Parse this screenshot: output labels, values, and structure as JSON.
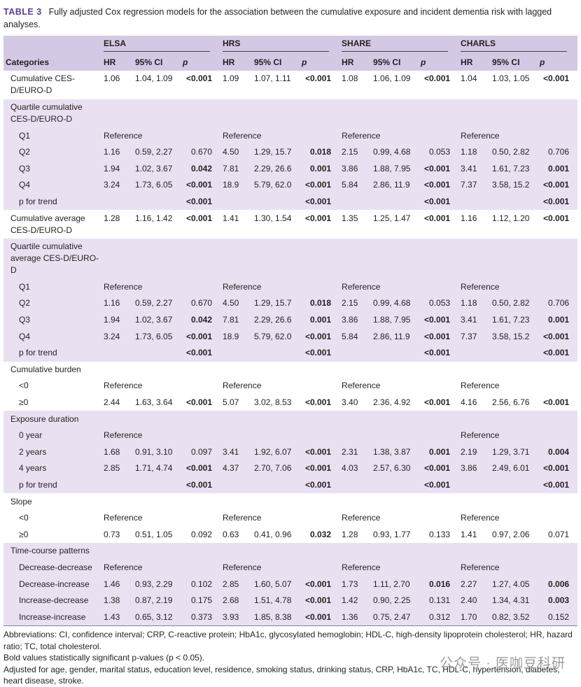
{
  "caption": {
    "label": "TABLE 3",
    "text": "Fully adjusted Cox regression models for the association between the cumulative exposure and incident dementia risk with lagged analyses."
  },
  "table": {
    "header": {
      "first": "Categories",
      "groups": [
        "ELSA",
        "HRS",
        "SHARE",
        "CHARLS"
      ],
      "columns": [
        "HR",
        "95% CI",
        "p",
        "HR",
        "95% CI",
        "p",
        "HR",
        "95% CI",
        "p",
        "HR",
        "95% CI",
        "p"
      ]
    },
    "sections": [
      {
        "label": "Cumulative CES-D/EURO-D",
        "cells": [
          "1.06",
          "1.04, 1.09",
          "<0.001",
          "1.09",
          "1.07, 1.11",
          "<0.001",
          "1.08",
          "1.06, 1.09",
          "<0.001",
          "1.04",
          "1.03, 1.05",
          "<0.001"
        ],
        "bold": [
          2,
          5,
          8,
          11
        ]
      },
      {
        "label": "Quartile cumulative CES-D/EURO-D",
        "rows": [
          {
            "label": "Q1",
            "cells": [
              "Reference",
              null,
              null,
              "Reference",
              null,
              null,
              "Reference",
              null,
              null,
              "Reference",
              null,
              null
            ],
            "bold": []
          },
          {
            "label": "Q2",
            "cells": [
              "1.16",
              "0.59, 2.27",
              "0.670",
              "4.50",
              "1.29, 15.7",
              "0.018",
              "2.15",
              "0.99, 4.68",
              "0.053",
              "1.18",
              "0.50, 2.82",
              "0.706"
            ],
            "bold": [
              5
            ]
          },
          {
            "label": "Q3",
            "cells": [
              "1.94",
              "1.02, 3.67",
              "0.042",
              "7.81",
              "2.29, 26.6",
              "0.001",
              "3.86",
              "1.88, 7.95",
              "<0.001",
              "3.41",
              "1.61, 7.23",
              "0.001"
            ],
            "bold": [
              2,
              5,
              8,
              11
            ]
          },
          {
            "label": "Q4",
            "cells": [
              "3.24",
              "1.73, 6.05",
              "<0.001",
              "18.9",
              "5.79, 62.0",
              "<0.001",
              "5.84",
              "2.86, 11.9",
              "<0.001",
              "7.37",
              "3.58, 15.2",
              "<0.001"
            ],
            "bold": [
              2,
              5,
              8,
              11
            ]
          },
          {
            "label": "p for trend",
            "cells": [
              null,
              null,
              "<0.001",
              null,
              null,
              "<0.001",
              null,
              null,
              "<0.001",
              null,
              null,
              "<0.001"
            ],
            "bold": [
              2,
              5,
              8,
              11
            ]
          }
        ]
      },
      {
        "label": "Cumulative average CES-D/EURO-D",
        "cells": [
          "1.28",
          "1.16, 1.42",
          "<0.001",
          "1.41",
          "1.30, 1.54",
          "<0.001",
          "1.35",
          "1.25, 1.47",
          "<0.001",
          "1.16",
          "1.12, 1.20",
          "<0.001"
        ],
        "bold": [
          2,
          5,
          8,
          11
        ]
      },
      {
        "label": "Quartile cumulative average CES-D/EURO-D",
        "rows": [
          {
            "label": "Q1",
            "cells": [
              "Reference",
              null,
              null,
              "Reference",
              null,
              null,
              "Reference",
              null,
              null,
              "Reference",
              null,
              null
            ],
            "bold": []
          },
          {
            "label": "Q2",
            "cells": [
              "1.16",
              "0.59, 2.27",
              "0.670",
              "4.50",
              "1.29, 15.7",
              "0.018",
              "2.15",
              "0.99, 4.68",
              "0.053",
              "1.18",
              "0.50, 2.82",
              "0.706"
            ],
            "bold": [
              5
            ]
          },
          {
            "label": "Q3",
            "cells": [
              "1.94",
              "1.02, 3.67",
              "0.042",
              "7.81",
              "2.29, 26.6",
              "0.001",
              "3.86",
              "1.88, 7.95",
              "<0.001",
              "3.41",
              "1.61, 7.23",
              "0.001"
            ],
            "bold": [
              2,
              5,
              8,
              11
            ]
          },
          {
            "label": "Q4",
            "cells": [
              "3.24",
              "1.73, 6.05",
              "<0.001",
              "18.9",
              "5.79, 62.0",
              "<0.001",
              "5.84",
              "2.86, 11.9",
              "<0.001",
              "7.37",
              "3.58, 15.2",
              "<0.001"
            ],
            "bold": [
              2,
              5,
              8,
              11
            ]
          },
          {
            "label": "p for trend",
            "cells": [
              null,
              null,
              "<0.001",
              null,
              null,
              "<0.001",
              null,
              null,
              "<0.001",
              null,
              null,
              "<0.001"
            ],
            "bold": [
              2,
              5,
              8,
              11
            ]
          }
        ]
      },
      {
        "label": "Cumulative burden",
        "rows": [
          {
            "label": "<0",
            "cells": [
              "Reference",
              null,
              null,
              "Reference",
              null,
              null,
              "Reference",
              null,
              null,
              "Reference",
              null,
              null
            ],
            "bold": []
          },
          {
            "label": "≥0",
            "cells": [
              "2.44",
              "1.63, 3.64",
              "<0.001",
              "5.07",
              "3.02, 8.53",
              "<0.001",
              "3.40",
              "2.36, 4.92",
              "<0.001",
              "4.16",
              "2.56, 6.76",
              "<0.001"
            ],
            "bold": [
              2,
              5,
              8,
              11
            ]
          }
        ]
      },
      {
        "label": "Exposure duration",
        "rows": [
          {
            "label": "0 year",
            "cells": [
              "Reference",
              null,
              null,
              null,
              null,
              null,
              null,
              null,
              null,
              "Reference",
              null,
              null
            ],
            "bold": []
          },
          {
            "label": "2 years",
            "cells": [
              "1.68",
              "0.91, 3.10",
              "0.097",
              "3.41",
              "1.92, 6.07",
              "<0.001",
              "2.31",
              "1.38, 3.87",
              "0.001",
              "2.19",
              "1.29, 3.71",
              "0.004"
            ],
            "bold": [
              5,
              8,
              11
            ]
          },
          {
            "label": "4 years",
            "cells": [
              "2.85",
              "1.71, 4.74",
              "<0.001",
              "4.37",
              "2.70, 7.06",
              "<0.001",
              "4.03",
              "2.57, 6.30",
              "<0.001",
              "3.86",
              "2.49, 6.01",
              "<0.001"
            ],
            "bold": [
              2,
              5,
              8,
              11
            ]
          },
          {
            "label": "p for trend",
            "cells": [
              null,
              null,
              "<0.001",
              null,
              null,
              "<0.001",
              null,
              null,
              "<0.001",
              null,
              null,
              "<0.001"
            ],
            "bold": [
              2,
              5,
              8,
              11
            ]
          }
        ]
      },
      {
        "label": "Slope",
        "rows": [
          {
            "label": "<0",
            "cells": [
              "Reference",
              null,
              null,
              "Reference",
              null,
              null,
              "Reference",
              null,
              null,
              "Reference",
              null,
              null
            ],
            "bold": []
          },
          {
            "label": "≥0",
            "cells": [
              "0.73",
              "0.51, 1.05",
              "0.092",
              "0.63",
              "0.41, 0.96",
              "0.032",
              "1.28",
              "0.93, 1.77",
              "0.133",
              "1.41",
              "0.97, 2.06",
              "0.071"
            ],
            "bold": [
              5
            ]
          }
        ]
      },
      {
        "label": "Time-course patterns",
        "rows": [
          {
            "label": "Decrease-decrease",
            "cells": [
              "Reference",
              null,
              null,
              "Reference",
              null,
              null,
              "Reference",
              null,
              null,
              "Reference",
              null,
              null
            ],
            "bold": []
          },
          {
            "label": "Decrease-increase",
            "cells": [
              "1.46",
              "0.93, 2.29",
              "0.102",
              "2.85",
              "1.60, 5.07",
              "<0.001",
              "1.73",
              "1.11, 2.70",
              "0.016",
              "2.27",
              "1.27, 4.05",
              "0.006"
            ],
            "bold": [
              5,
              8,
              11
            ]
          },
          {
            "label": "Increase-decrease",
            "cells": [
              "1.38",
              "0.87, 2.19",
              "0.175",
              "2.68",
              "1.51, 4.78",
              "<0.001",
              "1.42",
              "0.90, 2.25",
              "0.131",
              "2.40",
              "1.34, 4.31",
              "0.003"
            ],
            "bold": [
              5,
              11
            ]
          },
          {
            "label": "Increase-increase",
            "cells": [
              "1.43",
              "0.65, 3.12",
              "0.373",
              "3.93",
              "1.85, 8.38",
              "<0.001",
              "1.36",
              "0.75, 2.47",
              "0.312",
              "1.70",
              "0.82, 3.52",
              "0.152"
            ],
            "bold": [
              5
            ]
          }
        ]
      }
    ]
  },
  "footnotes": [
    "Abbreviations: CI, confidence interval; CRP, C-reactive protein; HbA1c, glycosylated hemoglobin; HDL-C, high-density lipoprotein cholesterol; HR, hazard ratio; TC, total cholesterol.",
    "Bold values statistically significant p-values (p < 0.05).",
    "Adjusted for age, gender, marital status, education level, residence, smoking status, drinking status, CRP, HbA1c, TC, HDL-C, hypertension, diabetes, heart disease, stroke."
  ],
  "watermark": "公众号 · 医咖豆科研"
}
